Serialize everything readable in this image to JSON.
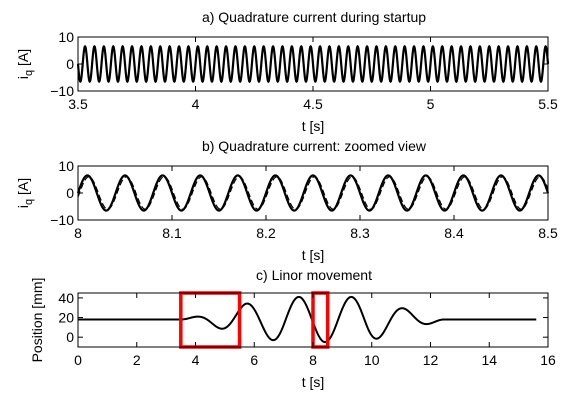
{
  "chart_data": [
    {
      "type": "line",
      "title": "a) Quadrature current during startup",
      "xlabel": "t [s]",
      "ylabel_main": "i",
      "ylabel_sub": "q",
      "ylabel_unit": " [A]",
      "xlim": [
        3.5,
        5.5
      ],
      "ylim": [
        -10,
        10
      ],
      "xticks": [
        3.5,
        4,
        4.5,
        5,
        5.5
      ],
      "xtick_labels": [
        "3.5",
        "4",
        "4.5",
        "5",
        "5.5"
      ],
      "yticks": [
        -10,
        0,
        10
      ],
      "ytick_labels": [
        "−10",
        "0",
        "10"
      ],
      "grid": false,
      "series": [
        {
          "amplitude": 6.5,
          "frequency_hz": 25,
          "x_range": [
            3.5,
            5.5
          ],
          "color": "#000000"
        }
      ]
    },
    {
      "type": "line",
      "title": "b) Quadrature current: zoomed view",
      "xlabel": "t [s]",
      "ylabel_main": "i",
      "ylabel_sub": "q",
      "ylabel_unit": " [A]",
      "xlim": [
        8,
        8.5
      ],
      "ylim": [
        -10,
        10
      ],
      "xticks": [
        8,
        8.1,
        8.2,
        8.3,
        8.4,
        8.5
      ],
      "xtick_labels": [
        "8",
        "8.1",
        "8.2",
        "8.3",
        "8.4",
        "8.5"
      ],
      "yticks": [
        -10,
        0,
        10
      ],
      "ytick_labels": [
        "−10",
        "0",
        "10"
      ],
      "grid": false,
      "series": [
        {
          "amplitude": 6.5,
          "frequency_hz": 25,
          "x_range": [
            8,
            8.5
          ],
          "color": "#000000"
        },
        {
          "amplitude": 6.0,
          "frequency_hz": 25,
          "x_range": [
            8,
            8.5
          ],
          "color": "#000000",
          "dashed": true
        }
      ]
    },
    {
      "type": "line",
      "title": "c) Linor movement",
      "xlabel": "t [s]",
      "ylabel": "Position [mm]",
      "xlim": [
        0,
        16
      ],
      "ylim": [
        -10,
        45
      ],
      "xticks": [
        0,
        2,
        4,
        6,
        8,
        10,
        12,
        14,
        16
      ],
      "xtick_labels": [
        "0",
        "2",
        "4",
        "6",
        "8",
        "10",
        "12",
        "14",
        "16"
      ],
      "yticks": [
        0,
        20,
        40
      ],
      "ytick_labels": [
        "0",
        "20",
        "40"
      ],
      "grid": false,
      "series": [
        {
          "baseline": 18,
          "color": "#000000",
          "x_range": [
            0,
            15.6
          ]
        }
      ],
      "highlight_boxes": [
        {
          "x": [
            3.5,
            5.5
          ],
          "color": "#ff0000"
        },
        {
          "x": [
            8,
            8.5
          ],
          "color": "#ff0000"
        }
      ]
    }
  ]
}
